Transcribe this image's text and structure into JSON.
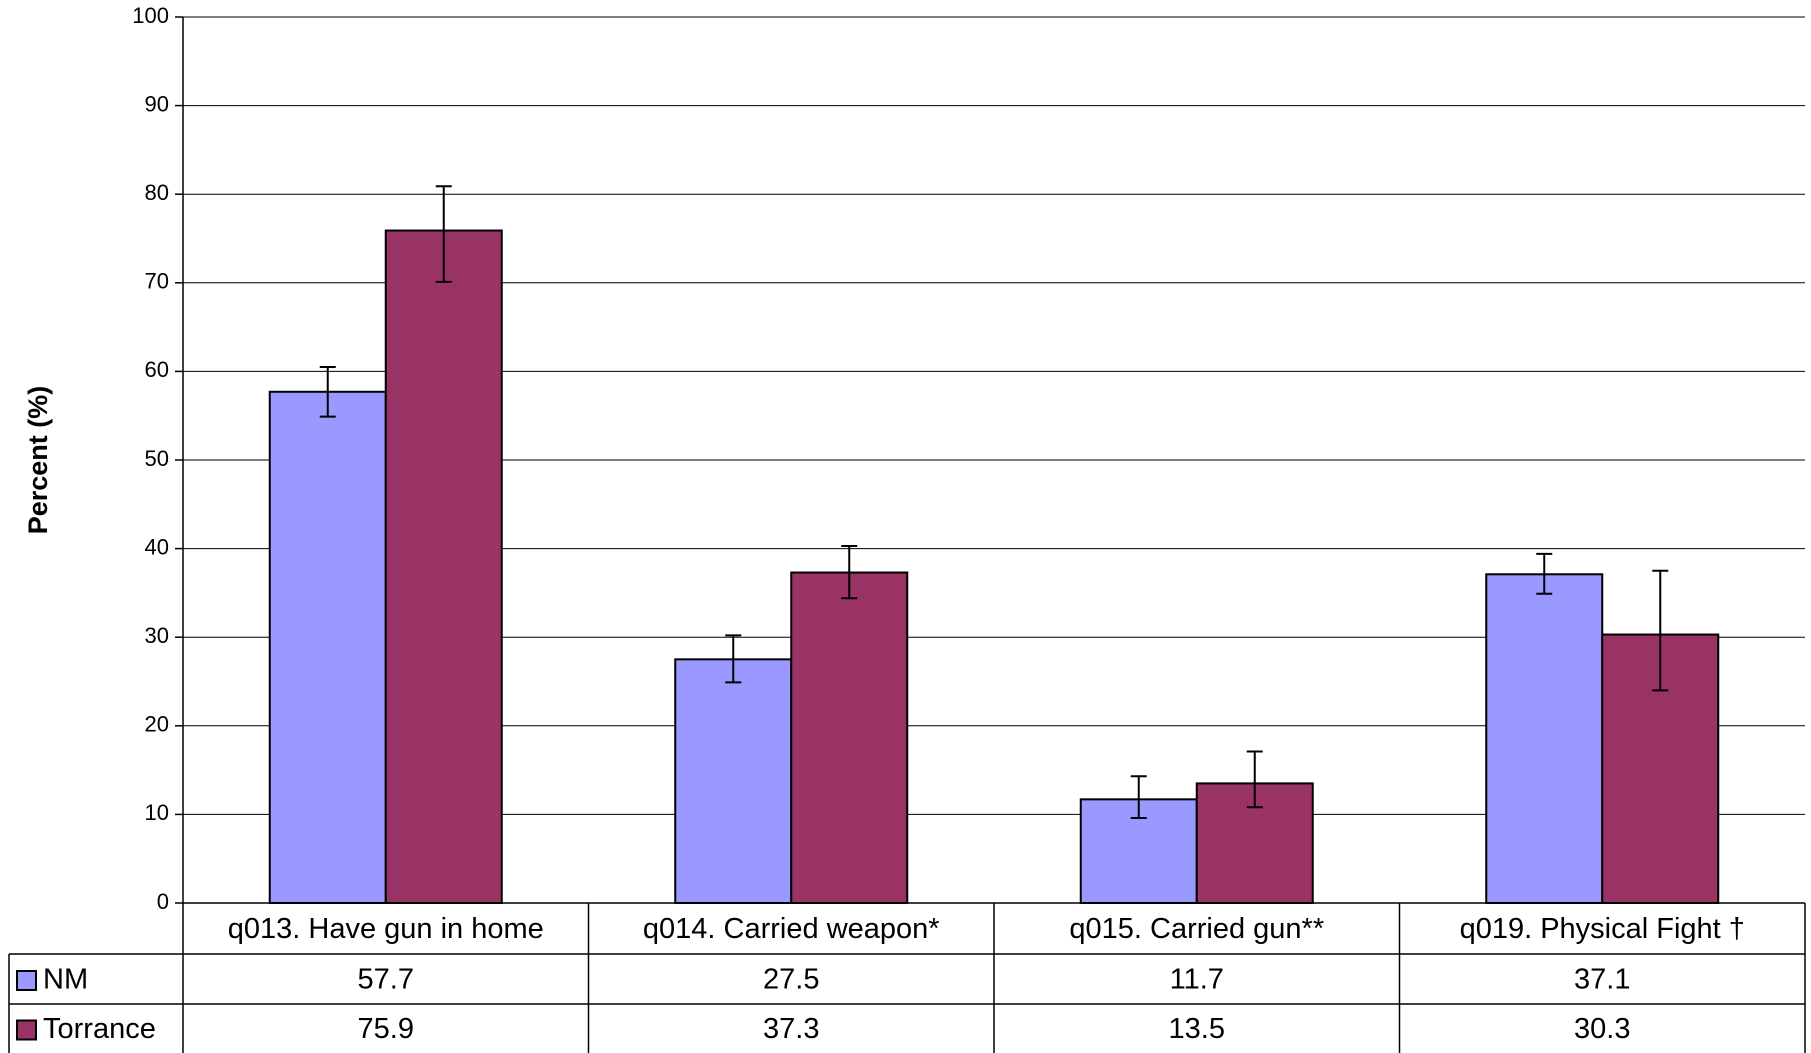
{
  "chart_data": {
    "type": "bar",
    "title": "",
    "xlabel": "",
    "ylabel": "Percent (%)",
    "ylim": [
      0,
      100
    ],
    "yticks": [
      0,
      10,
      20,
      30,
      40,
      50,
      60,
      70,
      80,
      90,
      100
    ],
    "grid": true,
    "legend": "data-table",
    "categories": [
      "q013. Have gun in home",
      "q014. Carried weapon*",
      "q015. Carried gun**",
      "q019. Physical Fight †"
    ],
    "series": [
      {
        "name": "NM",
        "color": "#9999ff",
        "values": [
          57.7,
          27.5,
          11.7,
          37.1
        ],
        "error_low": [
          54.9,
          24.9,
          9.6,
          34.9
        ],
        "error_high": [
          60.5,
          30.2,
          14.3,
          39.4
        ],
        "labels": [
          "57.7",
          "27.5",
          "11.7",
          "37.1"
        ]
      },
      {
        "name": "Torrance",
        "color": "#993366",
        "values": [
          75.9,
          37.3,
          13.5,
          30.3
        ],
        "error_low": [
          70.1,
          34.4,
          10.8,
          24.0
        ],
        "error_high": [
          80.9,
          40.3,
          17.1,
          37.5
        ],
        "labels": [
          "75.9",
          "37.3",
          "13.5",
          "30.3"
        ]
      }
    ]
  }
}
